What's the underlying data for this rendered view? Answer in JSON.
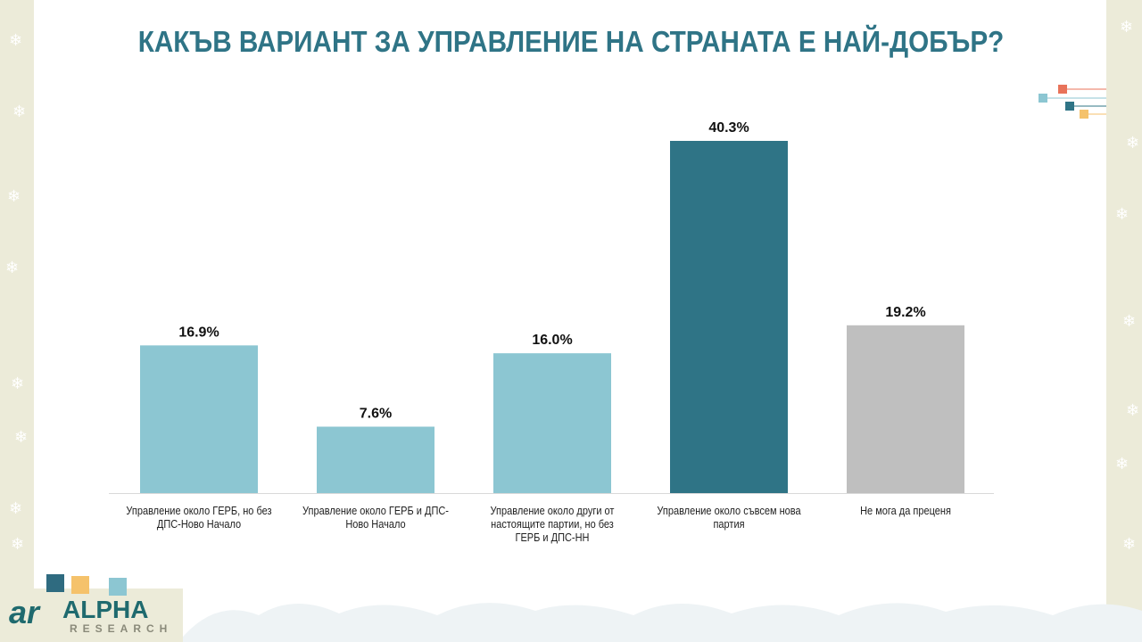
{
  "title": "КАКЪВ ВАРИАНТ ЗА УПРАВЛЕНИЕ НА СТРАНАТА Е НАЙ-ДОБЪР?",
  "logo": {
    "brand": "ALPHA",
    "sub": "RESEARCH",
    "mark": "ar"
  },
  "chart_data": {
    "type": "bar",
    "title": "КАКЪВ ВАРИАНТ ЗА УПРАВЛЕНИЕ НА СТРАНАТА Е НАЙ-ДОБЪР?",
    "categories": [
      "Управление около ГЕРБ, но без ДПС-Ново Начало",
      "Управление около ГЕРБ и ДПС-Ново Начало",
      "Управление около други от настоящите партии, но без ГЕРБ и ДПС-НН",
      "Управление около съвсем нова партия",
      "Не мога да преценя"
    ],
    "values": [
      16.9,
      7.6,
      16.0,
      40.3,
      19.2
    ],
    "data_labels": [
      "16.9%",
      "7.6%",
      "16.0%",
      "40.3%",
      "19.2%"
    ],
    "colors": [
      "#8cc6d2",
      "#8cc6d2",
      "#8cc6d2",
      "#2f7486",
      "#bfbfbf"
    ],
    "unit": "%",
    "ylim": [
      0,
      42
    ],
    "grid": false,
    "legend": "none"
  }
}
